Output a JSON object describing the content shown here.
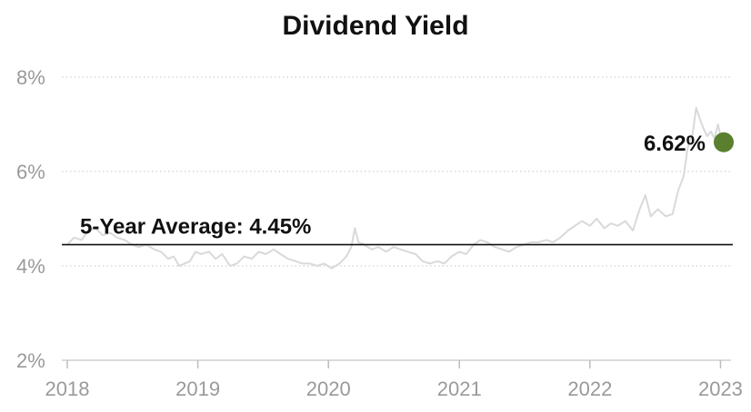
{
  "chart_data": {
    "type": "line",
    "title": "Dividend Yield",
    "xlabel": "",
    "ylabel": "",
    "x_range": [
      "2018-01-01",
      "2023-01-10"
    ],
    "ylim": [
      2,
      8
    ],
    "y_ticks": [
      2,
      4,
      6,
      8
    ],
    "y_tick_labels": [
      "2%",
      "4%",
      "6%",
      "8%"
    ],
    "x_ticks": [
      "2018-01-01",
      "2019-01-01",
      "2020-01-01",
      "2021-01-01",
      "2022-01-01",
      "2023-01-01"
    ],
    "x_tick_labels": [
      "2018",
      "2019",
      "2020",
      "2021",
      "2022",
      "2023"
    ],
    "grid": true,
    "series": [
      {
        "color": "#d9d9d9",
        "points": [
          [
            "2018-01-01",
            4.45
          ],
          [
            "2018-01-20",
            4.6
          ],
          [
            "2018-02-10",
            4.55
          ],
          [
            "2018-03-01",
            4.75
          ],
          [
            "2018-03-20",
            4.8
          ],
          [
            "2018-04-10",
            4.65
          ],
          [
            "2018-05-01",
            4.7
          ],
          [
            "2018-05-20",
            4.6
          ],
          [
            "2018-06-10",
            4.55
          ],
          [
            "2018-07-01",
            4.45
          ],
          [
            "2018-07-20",
            4.4
          ],
          [
            "2018-08-10",
            4.45
          ],
          [
            "2018-09-01",
            4.35
          ],
          [
            "2018-09-20",
            4.3
          ],
          [
            "2018-10-10",
            4.15
          ],
          [
            "2018-10-25",
            4.2
          ],
          [
            "2018-11-10",
            4.0
          ],
          [
            "2018-11-25",
            4.05
          ],
          [
            "2018-12-10",
            4.1
          ],
          [
            "2018-12-25",
            4.3
          ],
          [
            "2019-01-10",
            4.25
          ],
          [
            "2019-02-01",
            4.3
          ],
          [
            "2019-02-20",
            4.15
          ],
          [
            "2019-03-10",
            4.25
          ],
          [
            "2019-04-01",
            4.0
          ],
          [
            "2019-04-20",
            4.05
          ],
          [
            "2019-05-10",
            4.2
          ],
          [
            "2019-06-01",
            4.15
          ],
          [
            "2019-06-20",
            4.3
          ],
          [
            "2019-07-10",
            4.25
          ],
          [
            "2019-08-01",
            4.35
          ],
          [
            "2019-08-20",
            4.25
          ],
          [
            "2019-09-10",
            4.15
          ],
          [
            "2019-10-01",
            4.1
          ],
          [
            "2019-10-20",
            4.05
          ],
          [
            "2019-11-10",
            4.05
          ],
          [
            "2019-12-01",
            4.0
          ],
          [
            "2019-12-20",
            4.05
          ],
          [
            "2020-01-10",
            3.95
          ],
          [
            "2020-02-01",
            4.05
          ],
          [
            "2020-02-20",
            4.2
          ],
          [
            "2020-03-05",
            4.4
          ],
          [
            "2020-03-15",
            4.8
          ],
          [
            "2020-03-25",
            4.5
          ],
          [
            "2020-04-10",
            4.45
          ],
          [
            "2020-05-01",
            4.35
          ],
          [
            "2020-05-20",
            4.4
          ],
          [
            "2020-06-10",
            4.3
          ],
          [
            "2020-07-01",
            4.4
          ],
          [
            "2020-07-20",
            4.35
          ],
          [
            "2020-08-10",
            4.3
          ],
          [
            "2020-09-01",
            4.25
          ],
          [
            "2020-09-20",
            4.1
          ],
          [
            "2020-10-10",
            4.05
          ],
          [
            "2020-11-01",
            4.1
          ],
          [
            "2020-11-20",
            4.05
          ],
          [
            "2020-12-10",
            4.2
          ],
          [
            "2021-01-01",
            4.3
          ],
          [
            "2021-01-20",
            4.25
          ],
          [
            "2021-02-10",
            4.45
          ],
          [
            "2021-03-01",
            4.55
          ],
          [
            "2021-03-20",
            4.5
          ],
          [
            "2021-04-10",
            4.4
          ],
          [
            "2021-05-01",
            4.35
          ],
          [
            "2021-05-20",
            4.3
          ],
          [
            "2021-06-10",
            4.4
          ],
          [
            "2021-07-01",
            4.45
          ],
          [
            "2021-07-20",
            4.5
          ],
          [
            "2021-08-10",
            4.5
          ],
          [
            "2021-09-01",
            4.55
          ],
          [
            "2021-09-20",
            4.5
          ],
          [
            "2021-10-10",
            4.6
          ],
          [
            "2021-11-01",
            4.75
          ],
          [
            "2021-11-20",
            4.85
          ],
          [
            "2021-12-10",
            4.95
          ],
          [
            "2022-01-01",
            4.85
          ],
          [
            "2022-01-20",
            5.0
          ],
          [
            "2022-02-10",
            4.8
          ],
          [
            "2022-03-01",
            4.9
          ],
          [
            "2022-03-20",
            4.85
          ],
          [
            "2022-04-10",
            4.95
          ],
          [
            "2022-05-01",
            4.75
          ],
          [
            "2022-05-20",
            5.2
          ],
          [
            "2022-06-05",
            5.5
          ],
          [
            "2022-06-20",
            5.05
          ],
          [
            "2022-07-10",
            5.2
          ],
          [
            "2022-08-01",
            5.05
          ],
          [
            "2022-08-20",
            5.1
          ],
          [
            "2022-09-05",
            5.6
          ],
          [
            "2022-09-20",
            5.9
          ],
          [
            "2022-10-01",
            6.5
          ],
          [
            "2022-10-15",
            6.8
          ],
          [
            "2022-10-25",
            7.35
          ],
          [
            "2022-11-05",
            7.1
          ],
          [
            "2022-11-15",
            6.9
          ],
          [
            "2022-11-25",
            6.75
          ],
          [
            "2022-12-05",
            6.85
          ],
          [
            "2022-12-15",
            6.7
          ],
          [
            "2022-12-25",
            7.0
          ],
          [
            "2023-01-01",
            6.75
          ],
          [
            "2023-01-10",
            6.62
          ]
        ]
      }
    ],
    "average": {
      "value": 4.45,
      "label": "5-Year Average: 4.45%",
      "color": "#111111"
    },
    "last_point": {
      "date": "2023-01-10",
      "value": 6.62,
      "label": "6.62%",
      "color": "#5a7f2e"
    }
  }
}
